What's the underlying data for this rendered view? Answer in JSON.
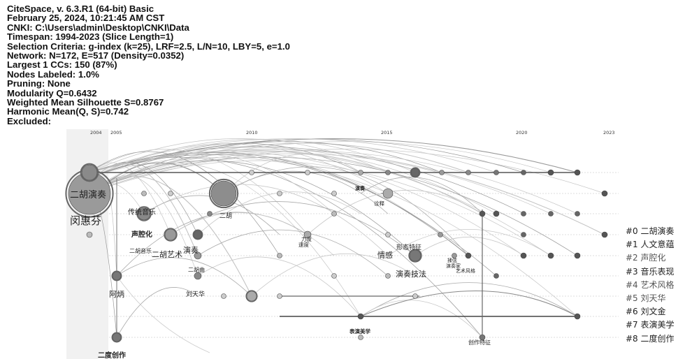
{
  "info_lines": [
    "CiteSpace, v. 6.3.R1 (64-bit) Basic",
    "February 25, 2024, 10:21:45 AM CST",
    "CNKI: C:\\Users\\admin\\Desktop\\CNKI\\Data",
    "Timespan: 1994-2023 (Slice Length=1)",
    "Selection Criteria: g-index (k=25), LRF=2.5, L/N=10, LBY=5, e=1.0",
    "Network: N=172, E=517 (Density=0.0352)",
    "Largest 1 CCs: 150 (87%)",
    "Nodes Labeled: 1.0%",
    "Pruning: None",
    "Modularity Q=0.6432",
    "Weighted Mean Silhouette S=0.8767",
    "Harmonic Mean(Q, S)=0.742",
    "Excluded:"
  ],
  "timeline_years": [
    "2004",
    "2005",
    "2010",
    "2015",
    "2020",
    "2023"
  ],
  "clusters": [
    {
      "label": "#0 二胡演奏"
    },
    {
      "label": "#1 人文意蕴"
    },
    {
      "label": "#2 声腔化"
    },
    {
      "label": "#3 音乐表现"
    },
    {
      "label": "#4 艺术风格"
    },
    {
      "label": "#5 刘天华"
    },
    {
      "label": "#6 刘文金"
    },
    {
      "label": "#7 表演美学"
    },
    {
      "label": "#8 二度创作"
    }
  ],
  "node_labels": [
    {
      "text": "二胡演奏"
    },
    {
      "text": "闵惠芬"
    },
    {
      "text": "传统音乐"
    },
    {
      "text": "声腔化"
    },
    {
      "text": "二胡音乐"
    },
    {
      "text": "二胡艺术"
    },
    {
      "text": "演奏"
    },
    {
      "text": "二胡曲"
    },
    {
      "text": "刘天华"
    },
    {
      "text": "阿炳"
    },
    {
      "text": "二度创作"
    },
    {
      "text": "演奏"
    },
    {
      "text": "诠释"
    },
    {
      "text": "力度"
    },
    {
      "text": "速度"
    },
    {
      "text": "情感"
    },
    {
      "text": "形态特征"
    },
    {
      "text": "演奏技法"
    },
    {
      "text": "揉弦"
    },
    {
      "text": "演奏家"
    },
    {
      "text": "艺术风格"
    },
    {
      "text": "表演美学"
    },
    {
      "text": "创作特征"
    },
    {
      "text": "二胡"
    }
  ]
}
